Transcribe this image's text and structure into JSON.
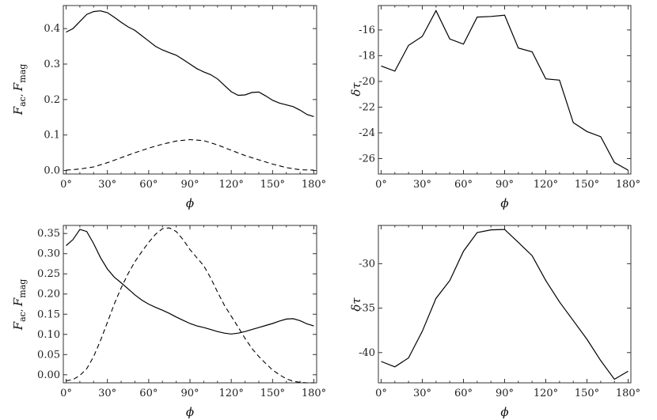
{
  "chart_data": [
    {
      "type": "line",
      "x_ticks": [
        0,
        30,
        60,
        90,
        120,
        150,
        180
      ],
      "x_tick_labels": [
        "0°",
        "30°",
        "60°",
        "90°",
        "120°",
        "150°",
        "180°"
      ],
      "xlim": [
        -2,
        182
      ],
      "ylim": [
        -0.01,
        0.465
      ],
      "y_ticks": [
        0.0,
        0.1,
        0.2,
        0.3,
        0.4
      ],
      "y_tick_labels": [
        "0.0",
        "0.1",
        "0.2",
        "0.3",
        "0.4"
      ],
      "xlabel": "ϕ",
      "ylabel_main": "F",
      "ylabel_sub1": "ac",
      "ylabel_sep": ", ",
      "ylabel_sub2": "mag",
      "series": [
        {
          "style": "solid",
          "x": [
            0,
            5,
            10,
            15,
            20,
            25,
            30,
            35,
            40,
            45,
            50,
            55,
            60,
            65,
            70,
            75,
            80,
            85,
            90,
            95,
            100,
            105,
            110,
            115,
            120,
            125,
            130,
            135,
            140,
            145,
            150,
            155,
            160,
            165,
            170,
            175,
            180
          ],
          "y": [
            0.39,
            0.4,
            0.42,
            0.44,
            0.448,
            0.45,
            0.445,
            0.432,
            0.418,
            0.405,
            0.395,
            0.38,
            0.365,
            0.35,
            0.34,
            0.332,
            0.325,
            0.313,
            0.3,
            0.287,
            0.278,
            0.27,
            0.258,
            0.24,
            0.222,
            0.212,
            0.213,
            0.22,
            0.221,
            0.21,
            0.198,
            0.19,
            0.185,
            0.18,
            0.17,
            0.158,
            0.152
          ]
        },
        {
          "style": "dashed",
          "x": [
            0,
            10,
            20,
            30,
            40,
            50,
            60,
            70,
            80,
            90,
            100,
            110,
            120,
            130,
            140,
            150,
            160,
            170,
            180
          ],
          "y": [
            0.001,
            0.004,
            0.01,
            0.022,
            0.036,
            0.05,
            0.063,
            0.074,
            0.083,
            0.087,
            0.084,
            0.072,
            0.057,
            0.042,
            0.03,
            0.018,
            0.008,
            0.002,
            0.001
          ]
        }
      ]
    },
    {
      "type": "line",
      "x_ticks": [
        0,
        30,
        60,
        90,
        120,
        150,
        180
      ],
      "x_tick_labels": [
        "0°",
        "30°",
        "60°",
        "90°",
        "120°",
        "150°",
        "180°"
      ],
      "xlim": [
        -2,
        182
      ],
      "ylim": [
        -27.2,
        -14.1
      ],
      "y_ticks": [
        -26,
        -24,
        -22,
        -20,
        -18,
        -16
      ],
      "y_tick_labels": [
        "-26",
        "-24",
        "-22",
        "-20",
        "-18",
        "-16"
      ],
      "xlabel": "ϕ",
      "ylabel": "δτ",
      "series": [
        {
          "style": "solid",
          "x": [
            0,
            10,
            20,
            30,
            40,
            50,
            60,
            70,
            80,
            90,
            100,
            110,
            120,
            130,
            140,
            150,
            160,
            170,
            180
          ],
          "y": [
            -18.8,
            -19.2,
            -17.2,
            -16.5,
            -14.5,
            -16.7,
            -17.1,
            -15.0,
            -14.95,
            -14.85,
            -17.4,
            -17.7,
            -19.8,
            -19.9,
            -23.2,
            -23.9,
            -24.3,
            -26.3,
            -26.9
          ]
        }
      ]
    },
    {
      "type": "line",
      "x_ticks": [
        0,
        30,
        60,
        90,
        120,
        150,
        180
      ],
      "x_tick_labels": [
        "0°",
        "30°",
        "60°",
        "90°",
        "120°",
        "150°",
        "180°"
      ],
      "xlim": [
        -2,
        182
      ],
      "ylim": [
        -0.02,
        0.37
      ],
      "y_ticks": [
        0.0,
        0.05,
        0.1,
        0.15,
        0.2,
        0.25,
        0.3,
        0.35
      ],
      "y_tick_labels": [
        "0.00",
        "0.05",
        "0.10",
        "0.15",
        "0.20",
        "0.25",
        "0.30",
        "0.35"
      ],
      "xlabel": "ϕ",
      "ylabel_main": "F",
      "ylabel_sub1": "ac",
      "ylabel_sep": ", ",
      "ylabel_sub2": "mag",
      "series": [
        {
          "style": "solid",
          "x": [
            0,
            5,
            10,
            15,
            20,
            25,
            30,
            35,
            40,
            45,
            50,
            55,
            60,
            65,
            70,
            75,
            80,
            85,
            90,
            95,
            100,
            105,
            110,
            115,
            120,
            125,
            130,
            135,
            140,
            145,
            150,
            155,
            160,
            165,
            170,
            175,
            180
          ],
          "y": [
            0.32,
            0.335,
            0.36,
            0.355,
            0.325,
            0.29,
            0.262,
            0.242,
            0.228,
            0.213,
            0.198,
            0.185,
            0.175,
            0.167,
            0.16,
            0.152,
            0.143,
            0.135,
            0.127,
            0.121,
            0.117,
            0.112,
            0.107,
            0.103,
            0.101,
            0.103,
            0.107,
            0.112,
            0.117,
            0.122,
            0.127,
            0.133,
            0.138,
            0.139,
            0.134,
            0.126,
            0.121
          ]
        },
        {
          "style": "dashed",
          "x": [
            0,
            5,
            10,
            15,
            20,
            25,
            30,
            35,
            40,
            45,
            50,
            55,
            60,
            65,
            70,
            75,
            80,
            85,
            90,
            95,
            100,
            105,
            110,
            115,
            120,
            125,
            130,
            135,
            140,
            145,
            150,
            155,
            160,
            165,
            170,
            175,
            180
          ],
          "y": [
            -0.015,
            -0.012,
            -0.002,
            0.015,
            0.045,
            0.085,
            0.13,
            0.175,
            0.215,
            0.25,
            0.28,
            0.305,
            0.328,
            0.348,
            0.362,
            0.364,
            0.355,
            0.335,
            0.31,
            0.29,
            0.27,
            0.24,
            0.205,
            0.172,
            0.145,
            0.118,
            0.09,
            0.065,
            0.045,
            0.028,
            0.012,
            0.0,
            -0.01,
            -0.016,
            -0.019,
            -0.02,
            -0.02
          ]
        }
      ]
    },
    {
      "type": "line",
      "x_ticks": [
        0,
        30,
        60,
        90,
        120,
        150,
        180
      ],
      "x_tick_labels": [
        "0°",
        "30°",
        "60°",
        "90°",
        "120°",
        "150°",
        "180°"
      ],
      "xlim": [
        -2,
        182
      ],
      "ylim": [
        -43.4,
        -25.7
      ],
      "y_ticks": [
        -40,
        -35,
        -30
      ],
      "y_tick_labels": [
        "-40",
        "-35",
        "-30"
      ],
      "xlabel": "ϕ",
      "ylabel": "δτ",
      "series": [
        {
          "style": "solid",
          "x": [
            0,
            10,
            20,
            30,
            40,
            50,
            60,
            70,
            80,
            90,
            100,
            110,
            120,
            130,
            140,
            150,
            160,
            170,
            180
          ],
          "y": [
            -41.0,
            -41.6,
            -40.6,
            -37.6,
            -33.9,
            -31.9,
            -28.6,
            -26.5,
            -26.2,
            -26.15,
            -27.6,
            -29.1,
            -31.9,
            -34.3,
            -36.4,
            -38.5,
            -40.9,
            -43.0,
            -42.1
          ]
        }
      ]
    }
  ]
}
